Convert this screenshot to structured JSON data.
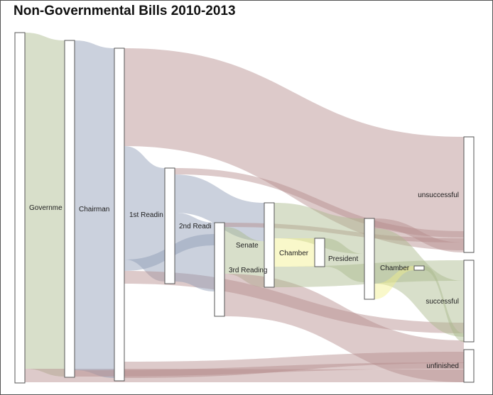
{
  "title": "Non-Governmental Bills 2010-2013",
  "colors": {
    "red": "#b48a8a",
    "blue": "#8c9ab4",
    "green": "#a9b889",
    "yellow": "#f1f08a",
    "node_fill": "#ffffff",
    "node_stroke": "#555555"
  },
  "nodes": [
    {
      "id": "government",
      "label": "Governme"
    },
    {
      "id": "chairman",
      "label": "Chairman"
    },
    {
      "id": "first_reading",
      "label": "1st Readin"
    },
    {
      "id": "second_reading",
      "label": "2nd Readi"
    },
    {
      "id": "third_reading",
      "label": "3rd Reading"
    },
    {
      "id": "senate",
      "label": "Senate"
    },
    {
      "id": "chamber1",
      "label": "Chamber"
    },
    {
      "id": "president",
      "label": "President"
    },
    {
      "id": "chamber2",
      "label": "Chamber"
    },
    {
      "id": "chamber3",
      "label": ""
    },
    {
      "id": "unsuccessful",
      "label": "unsuccessful"
    },
    {
      "id": "successful",
      "label": "successful"
    },
    {
      "id": "unfinished",
      "label": "unfinished"
    }
  ]
}
